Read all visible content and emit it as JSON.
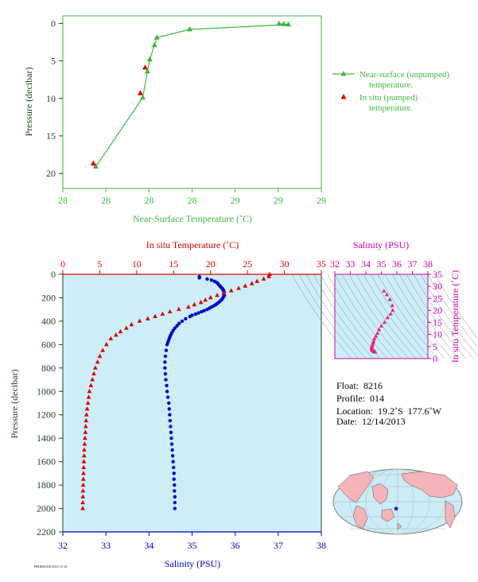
{
  "colors": {
    "green": "#3db83d",
    "red": "#dd0000",
    "blue": "#0000cc",
    "magenta": "#cc00aa",
    "pink": "#e8238a",
    "plot_bg": "#cdeef7",
    "axis_dark": "#224422",
    "land": "#f4b4b8",
    "ocean": "#ccecf6"
  },
  "chart_data": [
    {
      "id": "near_surface",
      "type": "line",
      "xlabel": "Near-Surface Temperature (˚C)",
      "ylabel": "Pressure (decibar)",
      "xlim": [
        28,
        29
      ],
      "ylim": [
        22,
        -1
      ],
      "x_ticks": [
        "28",
        "28",
        "28",
        "28",
        "29",
        "29",
        "29"
      ],
      "x_tick_positions": [
        27.85,
        28.0,
        28.15,
        28.3,
        28.45,
        28.6,
        28.75
      ],
      "y_ticks": [
        "0",
        "5",
        "10",
        "15",
        "20"
      ],
      "series": [
        {
          "name": "Near-surface (unpumped) temperature.",
          "marker": "triangle",
          "x": [
            27.89,
            28.09,
            28.11,
            28.12,
            28.14,
            28.15,
            28.29,
            28.67,
            28.69,
            28.71
          ],
          "y": [
            19.1,
            9.9,
            6.4,
            4.8,
            2.9,
            1.9,
            0.8,
            0.05,
            0.1,
            0.15
          ]
        },
        {
          "name": "In situ (pumped) temperature.",
          "marker": "triangle",
          "x": [
            27.88,
            28.08,
            28.1
          ],
          "y": [
            18.7,
            9.3,
            5.9
          ]
        }
      ]
    },
    {
      "id": "profile",
      "type": "scatter",
      "top_xlabel": "In situ Temperature (˚C)",
      "bottom_xlabel": "Salinity (PSU)",
      "ylabel": "Pressure (decibar)",
      "temp_lim": [
        0,
        35
      ],
      "sal_lim": [
        32,
        38
      ],
      "ylim": [
        2200,
        0
      ],
      "temp_ticks": [
        "0",
        "5",
        "10",
        "15",
        "20",
        "25",
        "30",
        "35"
      ],
      "sal_ticks": [
        "32",
        "33",
        "34",
        "35",
        "36",
        "37",
        "38"
      ],
      "y_ticks": [
        "0",
        "200",
        "400",
        "600",
        "800",
        "1000",
        "1200",
        "1400",
        "1600",
        "1800",
        "2000",
        "2200"
      ],
      "temperature": {
        "pressure": [
          0,
          20,
          40,
          60,
          80,
          100,
          120,
          140,
          160,
          180,
          200,
          220,
          240,
          260,
          280,
          300,
          320,
          340,
          360,
          380,
          400,
          430,
          460,
          490,
          520,
          550,
          600,
          650,
          700,
          750,
          800,
          850,
          900,
          950,
          1000,
          1050,
          1100,
          1150,
          1200,
          1250,
          1300,
          1350,
          1400,
          1450,
          1500,
          1550,
          1600,
          1650,
          1700,
          1750,
          1800,
          1850,
          1900,
          1950,
          2000
        ],
        "values": [
          28.0,
          27.9,
          27.2,
          26.3,
          25.6,
          24.7,
          23.8,
          22.8,
          21.8,
          20.9,
          20.0,
          19.3,
          18.7,
          17.8,
          17.0,
          15.7,
          14.5,
          13.5,
          12.5,
          11.5,
          10.4,
          9.3,
          8.6,
          7.8,
          7.2,
          6.5,
          5.9,
          5.4,
          5.0,
          4.7,
          4.4,
          4.2,
          4.0,
          3.8,
          3.6,
          3.5,
          3.4,
          3.3,
          3.2,
          3.15,
          3.1,
          3.05,
          3.0,
          2.95,
          2.9,
          2.88,
          2.85,
          2.82,
          2.8,
          2.78,
          2.75,
          2.73,
          2.72,
          2.7,
          2.7
        ]
      },
      "salinity": {
        "pressure": [
          20,
          30,
          40,
          50,
          60,
          70,
          80,
          90,
          100,
          110,
          120,
          130,
          140,
          150,
          160,
          170,
          180,
          190,
          200,
          210,
          220,
          230,
          240,
          250,
          260,
          270,
          280,
          290,
          300,
          310,
          320,
          330,
          340,
          350,
          360,
          380,
          400,
          420,
          440,
          460,
          480,
          500,
          520,
          540,
          560,
          580,
          600,
          650,
          700,
          750,
          800,
          850,
          900,
          950,
          1000,
          1050,
          1100,
          1150,
          1200,
          1250,
          1300,
          1350,
          1400,
          1450,
          1500,
          1550,
          1600,
          1650,
          1700,
          1750,
          1800,
          1850,
          1900,
          1950,
          2000
        ],
        "values": [
          35.17,
          35.17,
          35.35,
          35.45,
          35.52,
          35.57,
          35.6,
          35.62,
          35.65,
          35.67,
          35.7,
          35.72,
          35.73,
          35.74,
          35.74,
          35.74,
          35.75,
          35.73,
          35.72,
          35.7,
          35.68,
          35.65,
          35.62,
          35.58,
          35.55,
          35.5,
          35.45,
          35.4,
          35.35,
          35.28,
          35.22,
          35.15,
          35.08,
          35.0,
          34.95,
          34.85,
          34.77,
          34.7,
          34.65,
          34.6,
          34.56,
          34.53,
          34.5,
          34.48,
          34.46,
          34.44,
          34.42,
          34.4,
          34.38,
          34.37,
          34.37,
          34.38,
          34.39,
          34.41,
          34.42,
          34.44,
          34.46,
          34.47,
          34.48,
          34.49,
          34.5,
          34.51,
          34.52,
          34.53,
          34.54,
          34.55,
          34.56,
          34.57,
          34.58,
          34.58,
          34.59,
          34.59,
          34.6,
          34.6,
          34.6
        ]
      }
    },
    {
      "id": "ts_diagram",
      "type": "scatter",
      "xlabel": "Salinity (PSU)",
      "ylabel": "In situ Temperature (˚C)",
      "xlim": [
        32,
        38
      ],
      "ylim": [
        0,
        35
      ],
      "x_ticks": [
        "32",
        "33",
        "34",
        "35",
        "36",
        "37",
        "38"
      ],
      "y_ticks": [
        "0",
        "5",
        "10",
        "15",
        "20",
        "25",
        "30",
        "35"
      ],
      "salinity": [
        35.17,
        35.35,
        35.55,
        35.7,
        35.74,
        35.6,
        35.4,
        35.2,
        35.0,
        34.85,
        34.75,
        34.65,
        34.55,
        34.5,
        34.46,
        34.43,
        34.4,
        34.38,
        34.37,
        34.38,
        34.4,
        34.42,
        34.45,
        34.48,
        34.5,
        34.52,
        34.54,
        34.56,
        34.58,
        34.6
      ],
      "temperature": [
        28.0,
        26.5,
        24.5,
        22.0,
        20.0,
        18.5,
        17.0,
        15.0,
        13.5,
        12.0,
        10.5,
        9.3,
        8.2,
        7.2,
        6.5,
        5.8,
        5.2,
        4.8,
        4.4,
        4.0,
        3.7,
        3.5,
        3.3,
        3.2,
        3.1,
        3.0,
        2.9,
        2.85,
        2.8,
        2.7
      ]
    }
  ],
  "legend": {
    "line1": "Near-surface (unpumped)",
    "line2": "temperature.",
    "line3": "In situ (pumped)",
    "line4": "temperature."
  },
  "info": {
    "float": "Float:  8216",
    "profile": "Profile:  014",
    "location": "Location:  19.2˚S  177.6˚W",
    "date": "Date:  12/14/2013"
  },
  "footer": "PRODUCED 2013-12-14",
  "map": {
    "marker": "star",
    "lat": -19.2,
    "lon": -177.6
  }
}
